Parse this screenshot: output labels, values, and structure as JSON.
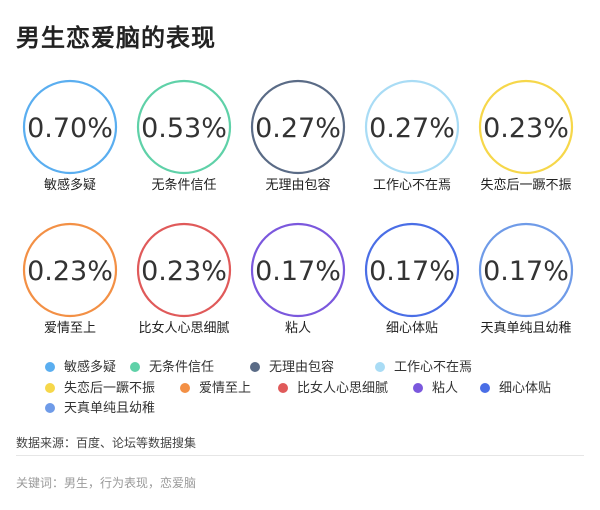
{
  "title": "男生恋爱脑的表现",
  "chart_data": {
    "type": "circle-value-grid",
    "categories": [
      "敏感多疑",
      "无条件信任",
      "无理由包容",
      "工作心不在焉",
      "失恋后一蹶不振",
      "爱情至上",
      "比女人心思细腻",
      "粘人",
      "细心体贴",
      "天真单纯且幼稚"
    ],
    "values": [
      0.7,
      0.53,
      0.27,
      0.27,
      0.23,
      0.23,
      0.23,
      0.17,
      0.17,
      0.17
    ],
    "value_labels": [
      "0.70%",
      "0.53%",
      "0.27%",
      "0.27%",
      "0.23%",
      "0.23%",
      "0.23%",
      "0.17%",
      "0.17%",
      "0.17%"
    ],
    "unit": "%",
    "colors": [
      "#5aaef0",
      "#5fd1a8",
      "#5a6b86",
      "#a9dcf5",
      "#f6d74a",
      "#f39045",
      "#e05a5a",
      "#7b58dd",
      "#4a6ee6",
      "#6f9be8"
    ],
    "legend": {
      "position": "bottom",
      "entries": [
        "敏感多疑",
        "无条件信任",
        "无理由包容",
        "工作心不在焉",
        "失恋后一蹶不振",
        "爱情至上",
        "比女人心思细腻",
        "粘人",
        "细心体贴",
        "天真单纯且幼稚"
      ]
    }
  },
  "source": "数据来源：百度、论坛等数据搜集",
  "keywords": "关键词：男生，行为表现，恋爱脑"
}
